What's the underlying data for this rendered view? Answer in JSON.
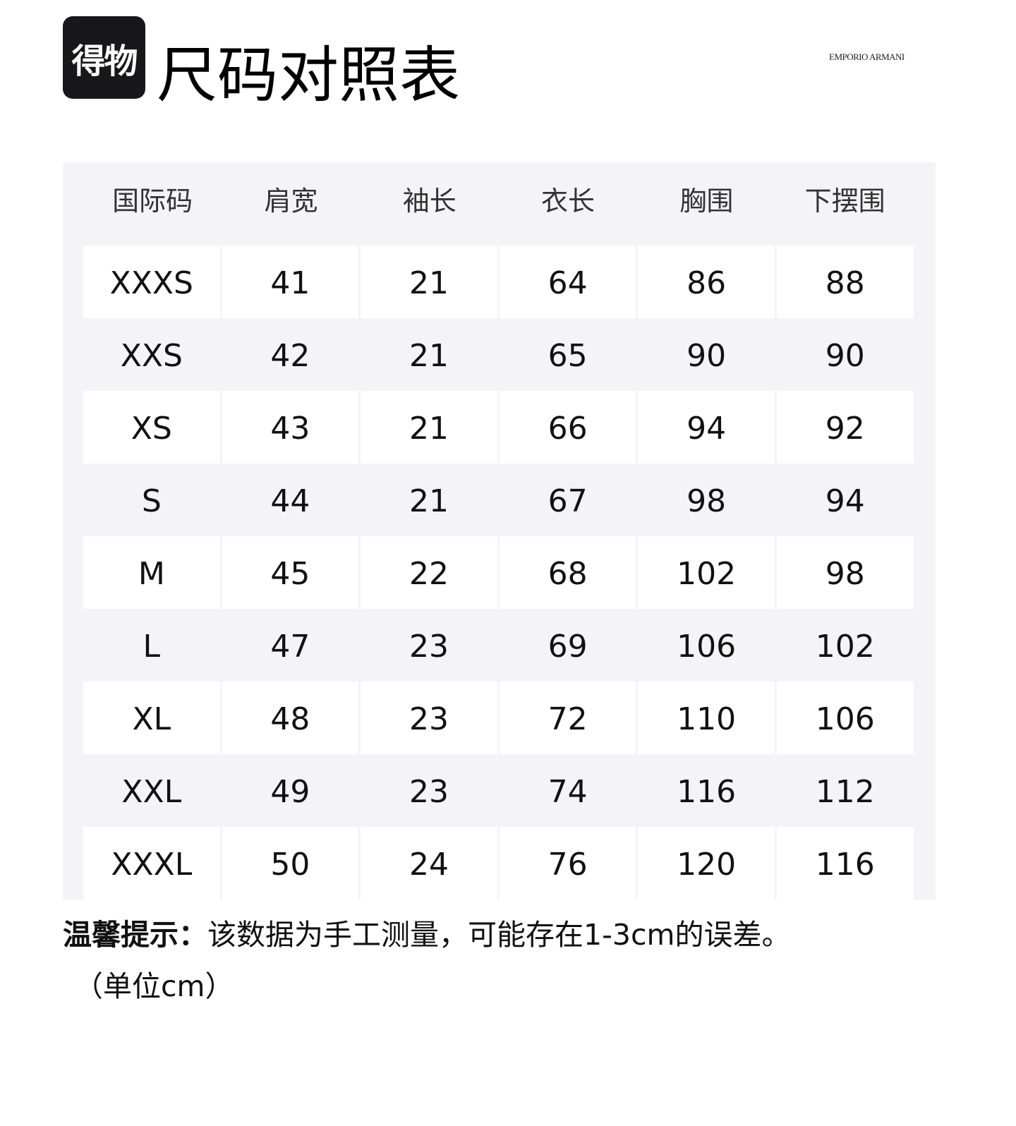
{
  "logo": {
    "text": "得物"
  },
  "title": "尺码对照表",
  "brand": "EMPORIO ARMANI",
  "table": {
    "headers": [
      "国际码",
      "肩宽",
      "袖长",
      "衣长",
      "胸围",
      "下摆围"
    ],
    "rows": [
      [
        "XXXS",
        "41",
        "21",
        "64",
        "86",
        "88"
      ],
      [
        "XXS",
        "42",
        "21",
        "65",
        "90",
        "90"
      ],
      [
        "XS",
        "43",
        "21",
        "66",
        "94",
        "92"
      ],
      [
        "S",
        "44",
        "21",
        "67",
        "98",
        "94"
      ],
      [
        "M",
        "45",
        "22",
        "68",
        "102",
        "98"
      ],
      [
        "L",
        "47",
        "23",
        "69",
        "106",
        "102"
      ],
      [
        "XL",
        "48",
        "23",
        "72",
        "110",
        "106"
      ],
      [
        "XXL",
        "49",
        "23",
        "74",
        "116",
        "112"
      ],
      [
        "XXXL",
        "50",
        "24",
        "76",
        "120",
        "116"
      ]
    ]
  },
  "note": {
    "label": "温馨提示：",
    "text": "该数据为手工测量，可能存在1-3cm的误差。",
    "unit": "（单位cm）"
  },
  "colors": {
    "panel": "#f4f4f8",
    "logo_bg": "#18181b"
  }
}
